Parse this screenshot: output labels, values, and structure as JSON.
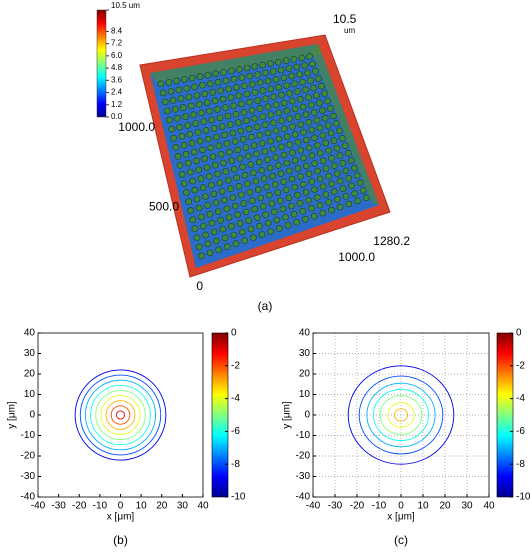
{
  "chart_data": [
    {
      "type": "surface3d",
      "caption": "(a)",
      "colormap": [
        "#00008f",
        "#0000ff",
        "#0080ff",
        "#00ffff",
        "#80ff80",
        "#ffff00",
        "#ff8000",
        "#ff0000",
        "#800000"
      ],
      "clim": [
        0,
        10.5
      ],
      "cticks": [
        {
          "value": 10.5,
          "label": "10.5 um"
        },
        8.4,
        7.2,
        {
          "value": 6,
          "label": "6.0"
        },
        4.8,
        3.6,
        2.4,
        1.2,
        {
          "value": 0,
          "label": "0.0"
        }
      ],
      "yticks": [
        0,
        {
          "value": 500,
          "label": "500.0"
        },
        {
          "value": 1000,
          "label": "1000.0"
        }
      ],
      "xticks": [
        {
          "value": 1000,
          "label": "1000.0"
        },
        {
          "value": 1280.2,
          "label": "1280.2"
        }
      ],
      "zticks": [
        {
          "value": 10.5,
          "label": "10.5"
        }
      ],
      "zunit": "um"
    },
    {
      "type": "contour",
      "caption": "(b)",
      "xlabel": "x [μm]",
      "ylabel": "y [μm]",
      "xlim": [
        -40,
        40
      ],
      "ylim": [
        -40,
        40
      ],
      "xticks": [
        -40,
        -30,
        -20,
        -10,
        0,
        10,
        20,
        30,
        40
      ],
      "yticks": [
        -40,
        -30,
        -20,
        -10,
        0,
        10,
        20,
        30,
        40
      ],
      "grid": false,
      "colormap": [
        "#00008f",
        "#0000ff",
        "#0080ff",
        "#00ffff",
        "#80ff80",
        "#ffff00",
        "#ff8000",
        "#ff0000",
        "#800000"
      ],
      "clim": [
        -10,
        0
      ],
      "cticks": [
        0,
        -2,
        -4,
        -6,
        -8,
        -10
      ],
      "levels": [
        -9,
        -8,
        -7,
        -6,
        -5,
        -4,
        -3,
        -2,
        -1
      ],
      "radii": [
        22,
        19.5,
        17,
        14.5,
        12,
        9.5,
        7,
        4.5,
        2
      ]
    },
    {
      "type": "contour",
      "caption": "(c)",
      "xlabel": "x [μm]",
      "ylabel": "y [μm]",
      "xlim": [
        -40,
        40
      ],
      "ylim": [
        -40,
        40
      ],
      "xticks": [
        -40,
        -30,
        -20,
        -10,
        0,
        10,
        20,
        30,
        40
      ],
      "yticks": [
        -40,
        -30,
        -20,
        -10,
        0,
        10,
        20,
        30,
        40
      ],
      "grid": true,
      "colormap": [
        "#00008f",
        "#0000ff",
        "#0080ff",
        "#00ffff",
        "#80ff80",
        "#ffff00",
        "#ff8000",
        "#ff0000",
        "#800000"
      ],
      "clim": [
        -10,
        0
      ],
      "cticks": [
        0,
        -2,
        -4,
        -6,
        -8,
        -10
      ],
      "levels": [
        -9,
        -8,
        -7,
        -6,
        -5,
        -4,
        -3
      ],
      "radii": [
        24,
        19,
        15.5,
        12.5,
        9.5,
        6,
        3
      ]
    }
  ]
}
